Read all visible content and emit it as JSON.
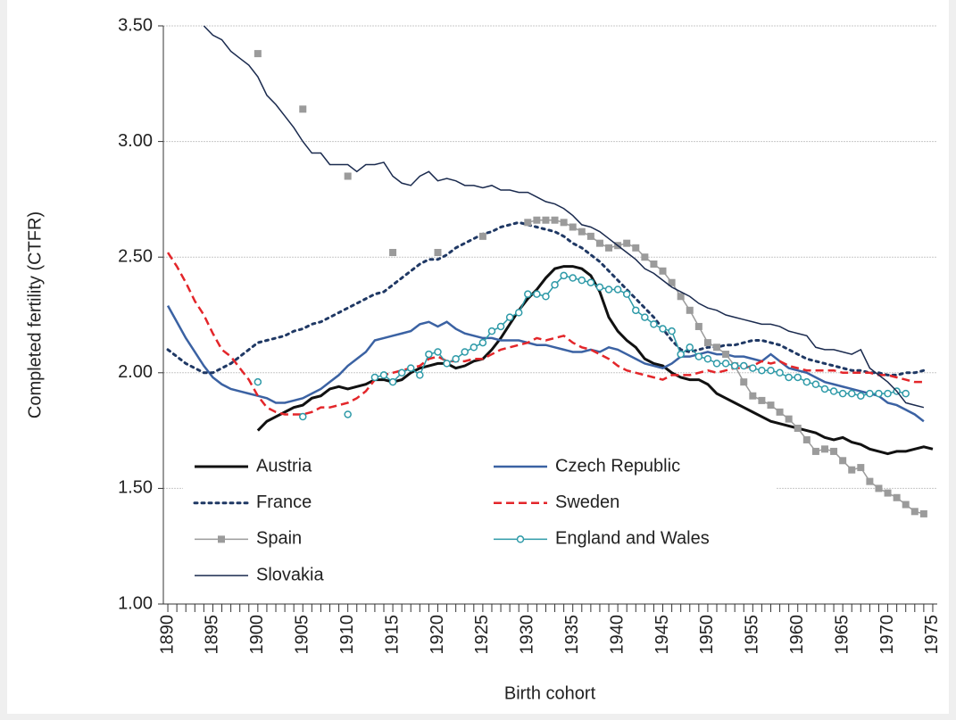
{
  "chart_data": {
    "type": "line",
    "ylabel": "Completed fertility (CTFR)",
    "xlabel": "Birth cohort",
    "x": [
      1890,
      1891,
      1892,
      1893,
      1894,
      1895,
      1896,
      1897,
      1898,
      1899,
      1900,
      1901,
      1902,
      1903,
      1904,
      1905,
      1906,
      1907,
      1908,
      1909,
      1910,
      1911,
      1912,
      1913,
      1914,
      1915,
      1916,
      1917,
      1918,
      1919,
      1920,
      1921,
      1922,
      1923,
      1924,
      1925,
      1926,
      1927,
      1928,
      1929,
      1930,
      1931,
      1932,
      1933,
      1934,
      1935,
      1936,
      1937,
      1938,
      1939,
      1940,
      1941,
      1942,
      1943,
      1944,
      1945,
      1946,
      1947,
      1948,
      1949,
      1950,
      1951,
      1952,
      1953,
      1954,
      1955,
      1956,
      1957,
      1958,
      1959,
      1960,
      1961,
      1962,
      1963,
      1964,
      1965,
      1966,
      1967,
      1968,
      1969,
      1970,
      1971,
      1972,
      1973,
      1974,
      1975
    ],
    "xlim": [
      1889.5,
      1975.5
    ],
    "xticks": [
      1890,
      1895,
      1900,
      1905,
      1910,
      1915,
      1920,
      1925,
      1930,
      1935,
      1940,
      1945,
      1950,
      1955,
      1960,
      1965,
      1970,
      1975
    ],
    "ylim": [
      1,
      3.5
    ],
    "yticks": [
      {
        "value": 1,
        "label": "1.00"
      },
      {
        "value": 1.5,
        "label": "1.50"
      },
      {
        "value": 2,
        "label": "2.00"
      },
      {
        "value": 2.5,
        "label": "2.50"
      },
      {
        "value": 3,
        "label": "3.00"
      },
      {
        "value": 3.5,
        "label": "3.50"
      }
    ],
    "grid": true,
    "legend": "lower left",
    "series": [
      {
        "name": "Austria",
        "color": "#111111",
        "width": 3,
        "style": "solid",
        "values": [
          null,
          null,
          null,
          null,
          null,
          null,
          null,
          null,
          null,
          null,
          1.75,
          1.79,
          1.81,
          1.83,
          1.85,
          1.86,
          1.89,
          1.9,
          1.93,
          1.94,
          1.93,
          1.94,
          1.95,
          1.97,
          1.97,
          1.96,
          1.97,
          2.0,
          2.02,
          2.03,
          2.04,
          2.04,
          2.02,
          2.03,
          2.05,
          2.06,
          2.1,
          2.15,
          2.21,
          2.27,
          2.32,
          2.36,
          2.41,
          2.45,
          2.46,
          2.46,
          2.45,
          2.42,
          2.35,
          2.24,
          2.18,
          2.14,
          2.11,
          2.06,
          2.04,
          2.03,
          2.0,
          1.98,
          1.97,
          1.97,
          1.95,
          1.91,
          1.89,
          1.87,
          1.85,
          1.83,
          1.81,
          1.79,
          1.78,
          1.77,
          1.76,
          1.75,
          1.74,
          1.72,
          1.71,
          1.72,
          1.7,
          1.69,
          1.67,
          1.66,
          1.65,
          1.66,
          1.66,
          1.67,
          1.68,
          1.67
        ]
      },
      {
        "name": "Czech Republic",
        "color": "#3b62a3",
        "width": 2.5,
        "style": "solid",
        "values": [
          2.29,
          2.22,
          2.15,
          2.09,
          2.03,
          1.98,
          1.95,
          1.93,
          1.92,
          1.91,
          1.9,
          1.89,
          1.87,
          1.87,
          1.88,
          1.89,
          1.91,
          1.93,
          1.96,
          1.99,
          2.03,
          2.06,
          2.09,
          2.14,
          2.15,
          2.16,
          2.17,
          2.18,
          2.21,
          2.22,
          2.2,
          2.22,
          2.19,
          2.17,
          2.16,
          2.15,
          2.15,
          2.14,
          2.14,
          2.14,
          2.13,
          2.12,
          2.12,
          2.11,
          2.1,
          2.09,
          2.09,
          2.1,
          2.09,
          2.11,
          2.1,
          2.08,
          2.06,
          2.04,
          2.03,
          2.02,
          2.04,
          2.07,
          2.07,
          2.08,
          2.09,
          2.08,
          2.08,
          2.07,
          2.07,
          2.06,
          2.05,
          2.08,
          2.05,
          2.02,
          2.01,
          2.0,
          1.98,
          1.96,
          1.95,
          1.94,
          1.93,
          1.92,
          1.91,
          1.9,
          1.87,
          1.86,
          1.84,
          1.82,
          1.79,
          null
        ]
      },
      {
        "name": "France",
        "color": "#1f3864",
        "width": 3,
        "style": "dotted",
        "values": [
          2.1,
          2.07,
          2.04,
          2.02,
          2.0,
          2.0,
          2.02,
          2.04,
          2.07,
          2.1,
          2.13,
          2.14,
          2.15,
          2.16,
          2.18,
          2.19,
          2.21,
          2.22,
          2.24,
          2.26,
          2.28,
          2.3,
          2.32,
          2.34,
          2.35,
          2.38,
          2.41,
          2.44,
          2.47,
          2.49,
          2.49,
          2.51,
          2.54,
          2.56,
          2.58,
          2.6,
          2.61,
          2.63,
          2.64,
          2.65,
          2.64,
          2.63,
          2.62,
          2.61,
          2.59,
          2.56,
          2.54,
          2.51,
          2.48,
          2.44,
          2.4,
          2.36,
          2.32,
          2.28,
          2.24,
          2.19,
          2.14,
          2.1,
          2.09,
          2.1,
          2.11,
          2.11,
          2.12,
          2.12,
          2.13,
          2.14,
          2.14,
          2.13,
          2.12,
          2.1,
          2.08,
          2.06,
          2.05,
          2.04,
          2.03,
          2.02,
          2.01,
          2.01,
          2.0,
          2.0,
          1.99,
          1.99,
          2.0,
          2.0,
          2.01,
          null
        ]
      },
      {
        "name": "Sweden",
        "color": "#e3262a",
        "width": 2.5,
        "style": "dashed",
        "values": [
          2.52,
          2.46,
          2.39,
          2.31,
          2.25,
          2.17,
          2.1,
          2.07,
          2.02,
          1.97,
          1.9,
          1.85,
          1.83,
          1.82,
          1.82,
          1.82,
          1.83,
          1.85,
          1.85,
          1.86,
          1.87,
          1.89,
          1.92,
          1.97,
          1.99,
          2.0,
          2.01,
          2.02,
          2.03,
          2.06,
          2.07,
          2.05,
          2.05,
          2.05,
          2.06,
          2.06,
          2.08,
          2.1,
          2.11,
          2.12,
          2.13,
          2.15,
          2.14,
          2.15,
          2.16,
          2.13,
          2.11,
          2.1,
          2.08,
          2.06,
          2.03,
          2.01,
          2.0,
          1.99,
          1.98,
          1.97,
          1.99,
          1.99,
          1.99,
          2.0,
          2.01,
          2.0,
          2.01,
          2.02,
          2.02,
          2.03,
          2.05,
          2.04,
          2.05,
          2.03,
          2.02,
          2.01,
          2.01,
          2.01,
          2.01,
          2.0,
          2.0,
          2.0,
          2.0,
          1.99,
          1.99,
          1.98,
          1.97,
          1.96,
          1.96,
          null
        ]
      },
      {
        "name": "Spain",
        "color": "#9b9b9b",
        "width": 1.5,
        "style": "solid",
        "marker": "square",
        "values": [
          null,
          null,
          null,
          null,
          null,
          null,
          null,
          null,
          null,
          null,
          3.38,
          null,
          null,
          null,
          null,
          3.14,
          null,
          null,
          null,
          null,
          2.85,
          null,
          null,
          null,
          null,
          2.52,
          null,
          null,
          null,
          null,
          2.52,
          null,
          null,
          null,
          null,
          2.59,
          null,
          null,
          null,
          null,
          2.65,
          2.66,
          2.66,
          2.66,
          2.65,
          2.63,
          2.61,
          2.59,
          2.56,
          2.54,
          2.55,
          2.56,
          2.54,
          2.5,
          2.47,
          2.44,
          2.39,
          2.33,
          2.27,
          2.2,
          2.13,
          2.11,
          2.08,
          2.03,
          1.96,
          1.9,
          1.88,
          1.86,
          1.83,
          1.8,
          1.76,
          1.71,
          1.66,
          1.67,
          1.66,
          1.62,
          1.58,
          1.59,
          1.53,
          1.5,
          1.48,
          1.46,
          1.43,
          1.4,
          1.39,
          null
        ]
      },
      {
        "name": "England and Wales",
        "color": "#2e9aa8",
        "width": 1.5,
        "style": "solid",
        "marker": "circle",
        "values": [
          null,
          null,
          null,
          null,
          null,
          null,
          null,
          null,
          null,
          null,
          1.96,
          null,
          null,
          null,
          null,
          1.81,
          null,
          null,
          null,
          null,
          1.82,
          null,
          null,
          1.98,
          1.99,
          1.96,
          2.0,
          2.02,
          1.99,
          2.08,
          2.09,
          2.04,
          2.06,
          2.09,
          2.11,
          2.13,
          2.18,
          2.2,
          2.24,
          2.26,
          2.34,
          2.34,
          2.33,
          2.38,
          2.42,
          2.41,
          2.4,
          2.39,
          2.37,
          2.36,
          2.36,
          2.34,
          2.27,
          2.24,
          2.21,
          2.19,
          2.18,
          2.08,
          2.11,
          2.07,
          2.06,
          2.04,
          2.04,
          2.03,
          2.03,
          2.02,
          2.01,
          2.01,
          2.0,
          1.98,
          1.98,
          1.96,
          1.95,
          1.93,
          1.92,
          1.91,
          1.91,
          1.9,
          1.91,
          1.91,
          1.91,
          1.92,
          1.91,
          null,
          null,
          null
        ]
      },
      {
        "name": "Slovakia",
        "color": "#1a2a4e",
        "width": 1.5,
        "style": "solid",
        "values": [
          null,
          null,
          null,
          null,
          3.5,
          3.46,
          3.44,
          3.39,
          3.36,
          3.33,
          3.28,
          3.2,
          3.16,
          3.11,
          3.06,
          3.0,
          2.95,
          2.95,
          2.9,
          2.9,
          2.9,
          2.87,
          2.9,
          2.9,
          2.91,
          2.85,
          2.82,
          2.81,
          2.85,
          2.87,
          2.83,
          2.84,
          2.83,
          2.81,
          2.81,
          2.8,
          2.81,
          2.79,
          2.79,
          2.78,
          2.78,
          2.76,
          2.74,
          2.73,
          2.71,
          2.68,
          2.64,
          2.63,
          2.61,
          2.58,
          2.55,
          2.52,
          2.49,
          2.45,
          2.43,
          2.4,
          2.37,
          2.35,
          2.33,
          2.3,
          2.28,
          2.27,
          2.25,
          2.24,
          2.23,
          2.22,
          2.21,
          2.21,
          2.2,
          2.18,
          2.17,
          2.16,
          2.11,
          2.1,
          2.1,
          2.09,
          2.08,
          2.1,
          2.02,
          1.99,
          1.96,
          1.92,
          1.87,
          1.86,
          1.85,
          null
        ]
      }
    ]
  }
}
